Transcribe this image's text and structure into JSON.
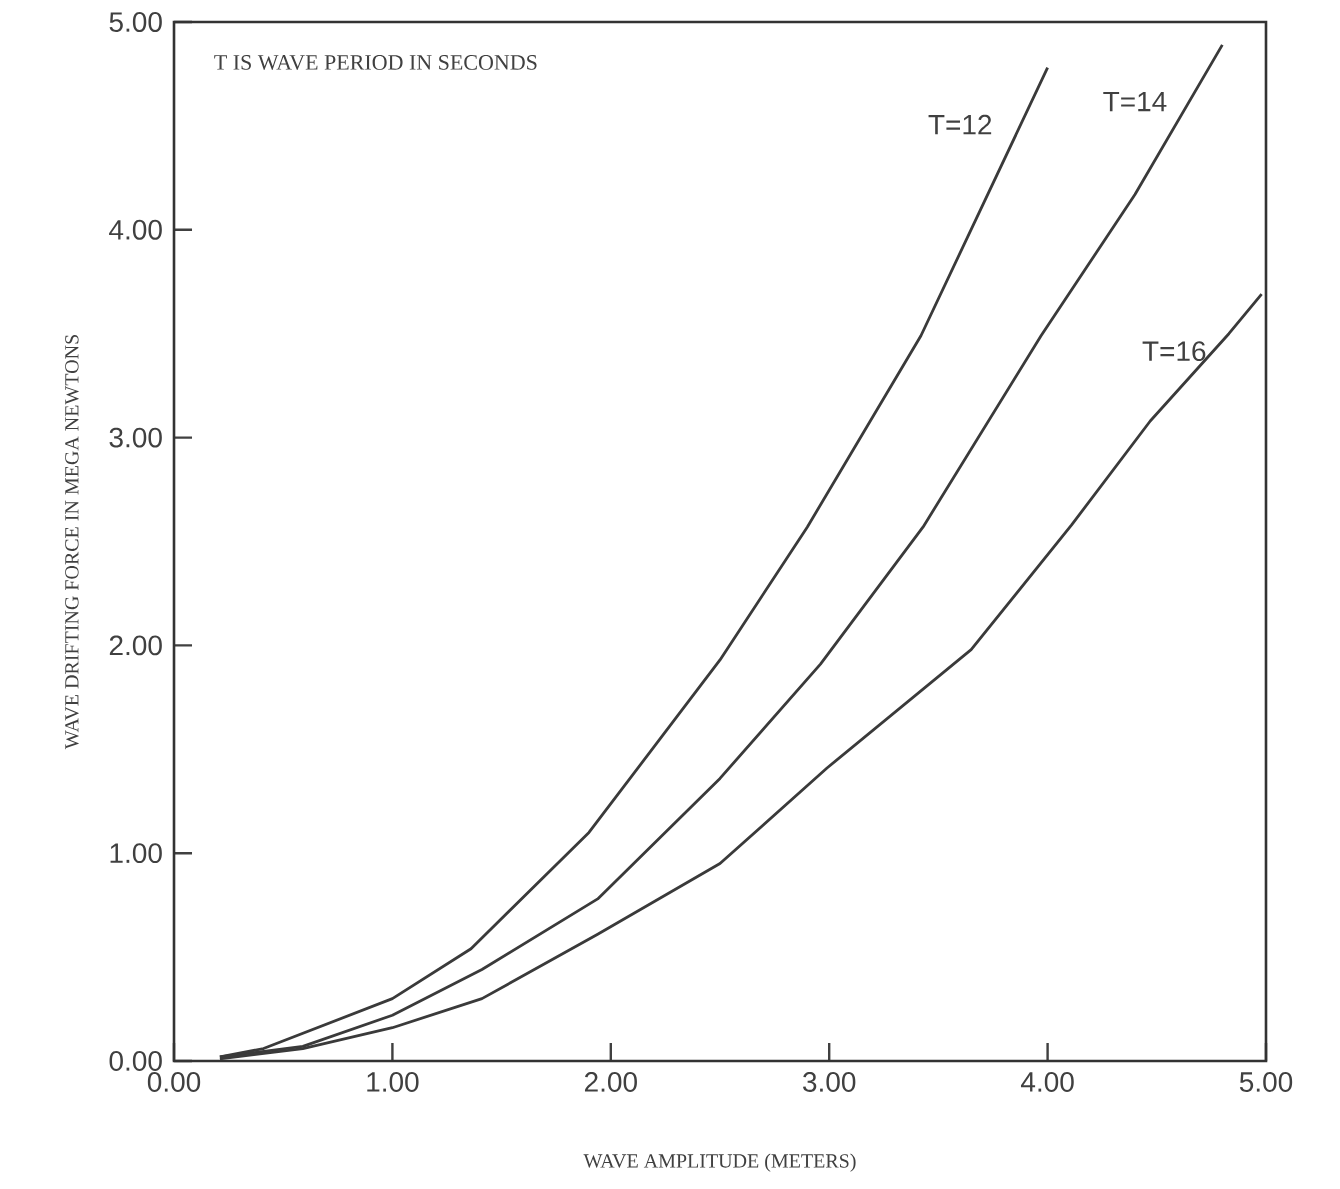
{
  "chart_data": {
    "type": "line",
    "xlabel": "WAVE AMPLITUDE (METERS)",
    "ylabel": "WAVE DRIFTING FORCE IN MEGA NEWTONS",
    "annotations": [
      "T IS WAVE PERIOD IN SECONDS"
    ],
    "xlim": [
      0,
      5
    ],
    "ylim": [
      0,
      5
    ],
    "xticks": [
      {
        "value": 0,
        "label": "0.00"
      },
      {
        "value": 1,
        "label": "1.00"
      },
      {
        "value": 2,
        "label": "2.00"
      },
      {
        "value": 3,
        "label": "3.00"
      },
      {
        "value": 4,
        "label": "4.00"
      },
      {
        "value": 5,
        "label": "5.00"
      }
    ],
    "yticks": [
      {
        "value": 0,
        "label": "0.00"
      },
      {
        "value": 1,
        "label": "1.00"
      },
      {
        "value": 2,
        "label": "2.00"
      },
      {
        "value": 3,
        "label": "3.00"
      },
      {
        "value": 4,
        "label": "4.00"
      },
      {
        "value": 5,
        "label": "5.00"
      }
    ],
    "series": [
      {
        "name": "T=12",
        "color": "#3a3a3a",
        "x": [
          0.21,
          0.41,
          1.0,
          1.36,
          1.9,
          2.5,
          2.9,
          3.42,
          4.0
        ],
        "values": [
          0.02,
          0.06,
          0.3,
          0.54,
          1.1,
          1.93,
          2.57,
          3.49,
          4.78
        ]
      },
      {
        "name": "T=14",
        "color": "#3a3a3a",
        "x": [
          0.21,
          0.59,
          1.0,
          1.41,
          1.94,
          2.5,
          2.96,
          3.43,
          3.97,
          4.4,
          4.8
        ],
        "values": [
          0.02,
          0.07,
          0.22,
          0.44,
          0.78,
          1.36,
          1.91,
          2.57,
          3.49,
          4.17,
          4.89
        ]
      },
      {
        "name": "T=16",
        "color": "#3a3a3a",
        "x": [
          0.21,
          0.59,
          1.0,
          1.41,
          1.94,
          2.5,
          2.99,
          3.65,
          4.11,
          4.47,
          4.83,
          4.98
        ],
        "values": [
          0.01,
          0.06,
          0.16,
          0.3,
          0.61,
          0.95,
          1.41,
          1.98,
          2.58,
          3.08,
          3.5,
          3.69
        ]
      }
    ]
  }
}
